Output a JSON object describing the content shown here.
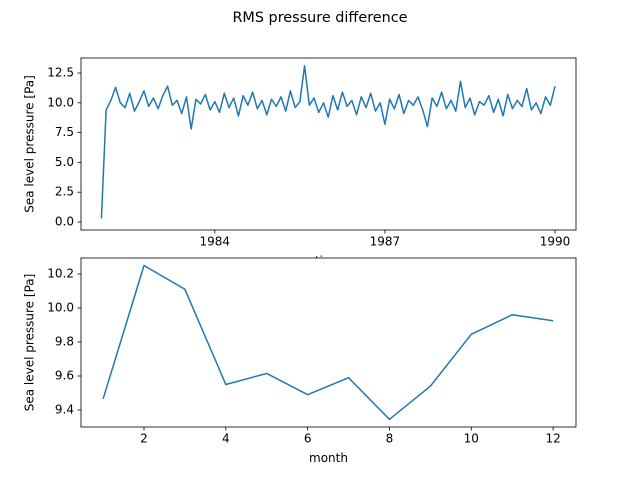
{
  "title": "RMS pressure difference",
  "chart_data": [
    {
      "type": "line",
      "xlabel": "time",
      "ylabel": "Sea level pressure [Pa]",
      "color": "#1f77b4",
      "xlim": [
        1981.64,
        1990.37
      ],
      "xticks": [
        1984,
        1987,
        1990
      ],
      "ylim": [
        -0.67,
        13.76
      ],
      "yticks": [
        {
          "value": 0,
          "label": "0.0"
        },
        2.5,
        {
          "value": 5,
          "label": "5.0"
        },
        7.5,
        {
          "value": 10,
          "label": "10.0"
        },
        12.5
      ],
      "x": [
        1982.0,
        1982.083,
        1982.167,
        1982.25,
        1982.333,
        1982.417,
        1982.5,
        1982.583,
        1982.667,
        1982.75,
        1982.833,
        1982.917,
        1983.0,
        1983.083,
        1983.167,
        1983.25,
        1983.333,
        1983.417,
        1983.5,
        1983.583,
        1983.667,
        1983.75,
        1983.833,
        1983.917,
        1984.0,
        1984.083,
        1984.167,
        1984.25,
        1984.333,
        1984.417,
        1984.5,
        1984.583,
        1984.667,
        1984.75,
        1984.833,
        1984.917,
        1985.0,
        1985.083,
        1985.167,
        1985.25,
        1985.333,
        1985.417,
        1985.5,
        1985.583,
        1985.667,
        1985.75,
        1985.833,
        1985.917,
        1986.0,
        1986.083,
        1986.167,
        1986.25,
        1986.333,
        1986.417,
        1986.5,
        1986.583,
        1986.667,
        1986.75,
        1986.833,
        1986.917,
        1987.0,
        1987.083,
        1987.167,
        1987.25,
        1987.333,
        1987.417,
        1987.5,
        1987.583,
        1987.667,
        1987.75,
        1987.833,
        1987.917,
        1988.0,
        1988.083,
        1988.167,
        1988.25,
        1988.333,
        1988.417,
        1988.5,
        1988.583,
        1988.667,
        1988.75,
        1988.833,
        1988.917,
        1989.0,
        1989.083,
        1989.167,
        1989.25,
        1989.333,
        1989.417,
        1989.5,
        1989.583,
        1989.667,
        1989.75,
        1989.833,
        1989.917,
        1990.0
      ],
      "values": [
        0.3,
        9.4,
        10.2,
        11.3,
        10.0,
        9.6,
        10.8,
        9.3,
        10.1,
        11.0,
        9.7,
        10.4,
        9.5,
        10.6,
        11.4,
        9.8,
        10.2,
        9.1,
        10.5,
        7.8,
        10.3,
        9.9,
        10.7,
        9.4,
        10.1,
        9.2,
        10.8,
        9.6,
        10.4,
        8.9,
        10.6,
        9.8,
        10.9,
        9.5,
        10.2,
        9.0,
        10.3,
        9.7,
        10.5,
        9.3,
        11.0,
        9.6,
        10.1,
        13.1,
        9.8,
        10.4,
        9.2,
        10.0,
        8.8,
        10.6,
        9.4,
        10.9,
        9.7,
        10.2,
        9.0,
        10.5,
        9.6,
        10.8,
        9.3,
        10.0,
        8.2,
        10.3,
        9.5,
        10.7,
        9.1,
        10.2,
        9.8,
        10.5,
        9.4,
        8.0,
        10.4,
        9.7,
        10.9,
        9.5,
        10.2,
        9.3,
        11.8,
        9.6,
        10.4,
        9.0,
        10.1,
        9.8,
        10.6,
        9.2,
        10.3,
        8.9,
        10.7,
        9.5,
        10.2,
        9.7,
        11.2,
        9.4,
        10.0,
        9.1,
        10.5,
        9.8,
        11.4
      ]
    },
    {
      "type": "line",
      "xlabel": "month",
      "ylabel": "Sea level pressure [Pa]",
      "color": "#1f77b4",
      "xlim": [
        0.46,
        12.56
      ],
      "xticks": [
        2,
        4,
        6,
        8,
        10,
        12
      ],
      "ylim": [
        9.3,
        10.294
      ],
      "yticks": [
        9.4,
        9.6,
        9.8,
        {
          "value": 10,
          "label": "10.0"
        },
        10.2
      ],
      "x": [
        1,
        2,
        3,
        4,
        5,
        6,
        7,
        8,
        9,
        10,
        11,
        12
      ],
      "values": [
        9.465,
        10.25,
        10.11,
        9.55,
        9.615,
        9.49,
        9.59,
        9.345,
        9.54,
        9.845,
        9.96,
        9.925
      ]
    }
  ]
}
